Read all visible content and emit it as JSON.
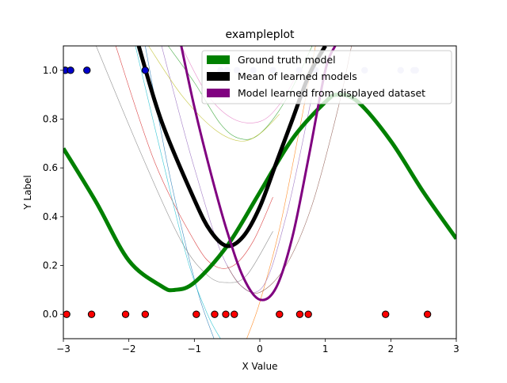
{
  "chart_data": {
    "type": "line",
    "title": "exampleplot",
    "xlabel": "X Value",
    "ylabel": "Y Label",
    "xlim": [
      -3,
      3
    ],
    "ylim": [
      -0.1,
      1.1
    ],
    "xticks": [
      -3,
      -2,
      -1,
      0,
      1,
      2,
      3
    ],
    "xtick_labels": [
      "−3",
      "−2",
      "−1",
      "0",
      "1",
      "2",
      "3"
    ],
    "yticks": [
      0.0,
      0.2,
      0.4,
      0.6,
      0.8,
      1.0
    ],
    "ytick_labels": [
      "0.0",
      "0.2",
      "0.4",
      "0.6",
      "0.8",
      "1.0"
    ],
    "grid": false,
    "legend": {
      "placement": "top-right",
      "entries": [
        {
          "label": "Ground truth model",
          "color": "#008000"
        },
        {
          "label": "Mean of learned models",
          "color": "#000000"
        },
        {
          "label": "Model learned from displayed dataset",
          "color": "#800080"
        }
      ]
    },
    "series": [
      {
        "name": "Ground truth model",
        "color": "#008000",
        "linewidth": 5,
        "x": [
          -3.0,
          -2.5,
          -2.0,
          -1.5,
          -1.3,
          -1.0,
          -0.5,
          0.0,
          0.5,
          1.0,
          1.2,
          1.5,
          2.0,
          2.5,
          3.0
        ],
        "y": [
          0.68,
          0.46,
          0.22,
          0.115,
          0.1,
          0.13,
          0.28,
          0.5,
          0.72,
          0.87,
          0.9,
          0.87,
          0.71,
          0.5,
          0.31
        ]
      },
      {
        "name": "Mean of learned models",
        "color": "#000000",
        "linewidth": 5,
        "x": [
          -1.85,
          -1.5,
          -1.0,
          -0.75,
          -0.5,
          -0.25,
          0.0,
          0.25,
          0.5,
          0.75,
          1.0
        ],
        "y": [
          1.1,
          0.79,
          0.47,
          0.34,
          0.28,
          0.32,
          0.44,
          0.62,
          0.8,
          0.98,
          1.1
        ]
      },
      {
        "name": "Model learned from displayed dataset",
        "color": "#800080",
        "linewidth": 3,
        "x": [
          -1.2,
          -1.0,
          -0.75,
          -0.5,
          -0.25,
          0.0,
          0.25,
          0.5,
          0.75,
          1.0,
          1.15
        ],
        "y": [
          1.1,
          0.85,
          0.58,
          0.34,
          0.15,
          0.06,
          0.11,
          0.32,
          0.65,
          1.0,
          1.1
        ]
      }
    ],
    "learned_models": [
      {
        "color": "#1f77b4",
        "x": [
          -1.75,
          -1.4,
          -1.1,
          -0.9,
          -0.7
        ],
        "y": [
          1.1,
          0.6,
          0.25,
          0.05,
          -0.1
        ]
      },
      {
        "color": "#ff7f0e",
        "x": [
          -0.2,
          0.0,
          0.3,
          0.6,
          0.85
        ],
        "y": [
          -0.1,
          0.05,
          0.35,
          0.75,
          1.1
        ]
      },
      {
        "color": "#2ca02c",
        "x": [
          -1.4,
          -1.0,
          -0.6,
          -0.3,
          0.0,
          0.4,
          0.8
        ],
        "y": [
          1.1,
          0.95,
          0.78,
          0.72,
          0.74,
          0.88,
          1.1
        ]
      },
      {
        "color": "#d62728",
        "x": [
          -2.2,
          -1.6,
          -1.0,
          -0.7,
          -0.4,
          -0.1,
          0.2
        ],
        "y": [
          1.1,
          0.62,
          0.3,
          0.2,
          0.2,
          0.3,
          0.48
        ]
      },
      {
        "color": "#9467bd",
        "x": [
          -1.5,
          -1.0,
          -0.5,
          0.0,
          0.4,
          0.8
        ],
        "y": [
          1.1,
          0.6,
          0.2,
          0.1,
          0.4,
          0.9
        ]
      },
      {
        "color": "#8c564b",
        "x": [
          -0.5,
          -0.3,
          0.0,
          0.4,
          0.8,
          1.2,
          1.4
        ],
        "y": [
          0.2,
          0.12,
          0.09,
          0.2,
          0.45,
          0.85,
          1.1
        ]
      },
      {
        "color": "#e377c2",
        "x": [
          -1.2,
          -0.8,
          -0.4,
          0.0,
          0.3,
          0.6
        ],
        "y": [
          1.1,
          0.9,
          0.8,
          0.79,
          0.86,
          1.0
        ]
      },
      {
        "color": "#7f7f7f",
        "x": [
          -2.5,
          -1.8,
          -1.2,
          -0.8,
          -0.5,
          -0.2,
          0.2
        ],
        "y": [
          1.1,
          0.65,
          0.3,
          0.16,
          0.13,
          0.16,
          0.34
        ]
      },
      {
        "color": "#bcbd22",
        "x": [
          -1.7,
          -1.2,
          -0.7,
          -0.3,
          0.0,
          0.3
        ],
        "y": [
          1.1,
          0.9,
          0.76,
          0.71,
          0.74,
          0.82
        ]
      },
      {
        "color": "#17becf",
        "x": [
          -1.9,
          -1.5,
          -1.1,
          -0.8,
          -0.6
        ],
        "y": [
          1.1,
          0.65,
          0.22,
          0.0,
          -0.1
        ]
      }
    ],
    "training_points_y0": {
      "fill": "#ff0000",
      "edge": "#000000",
      "x": [
        -2.95,
        -2.57,
        -2.05,
        -1.75,
        -0.97,
        -0.69,
        -0.52,
        -0.39,
        0.3,
        0.61,
        0.74,
        1.92,
        2.56
      ],
      "y": [
        0,
        0,
        0,
        0,
        0,
        0,
        0,
        0,
        0,
        0,
        0,
        0,
        0
      ]
    },
    "training_points_y1": {
      "fill": "#0000cc",
      "edge": "#000000",
      "x": [
        -2.97,
        -2.89,
        -2.64,
        -1.75
      ],
      "y": [
        1,
        1,
        1,
        1
      ]
    },
    "faded_points_y1": {
      "fill": "#ccccee",
      "x": [
        -0.6,
        -0.5,
        -0.35,
        -0.1,
        0.2,
        0.6,
        0.85,
        1.6,
        2.15,
        2.35,
        2.38
      ],
      "y": [
        1,
        1,
        1,
        1,
        1,
        1,
        1,
        1,
        1,
        1,
        1
      ]
    }
  }
}
